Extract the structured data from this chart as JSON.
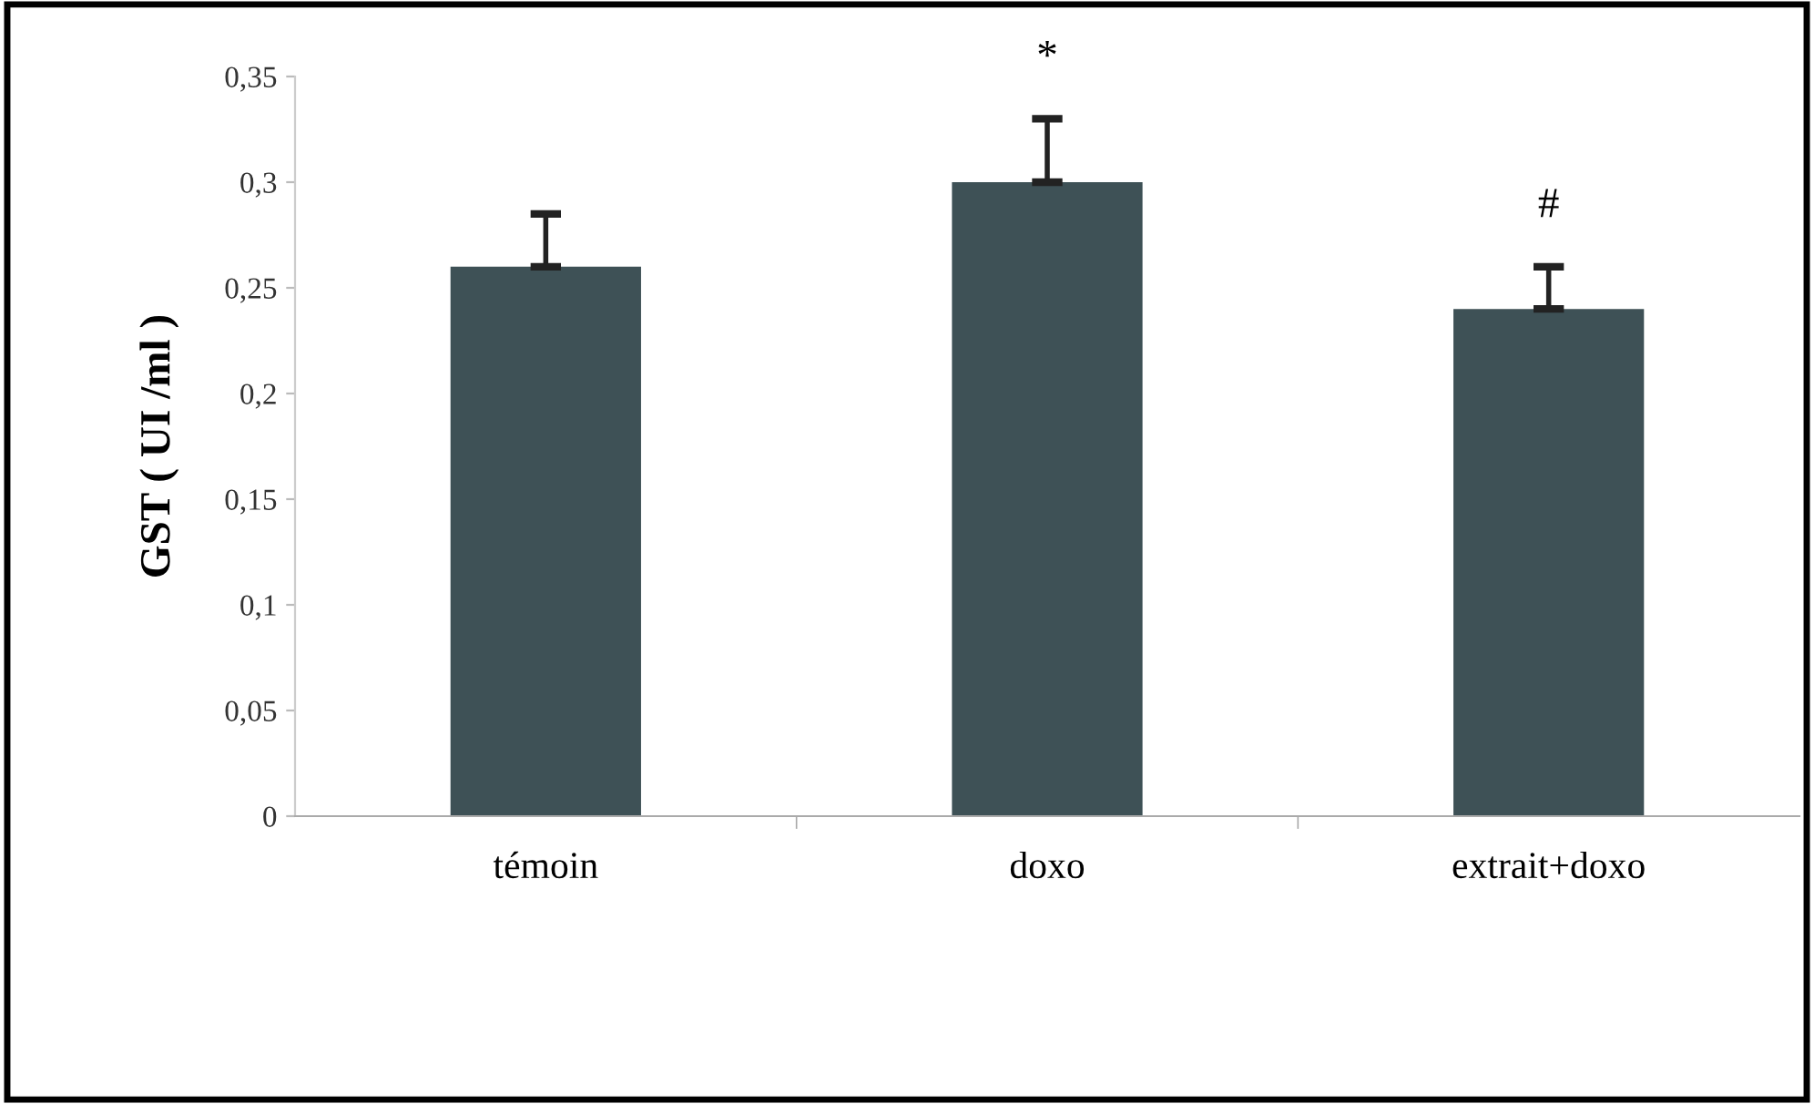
{
  "chart_data": {
    "type": "bar",
    "ylabel": "GST ( UI /ml )",
    "categories": [
      "témoin",
      "doxo",
      "extrait+doxo"
    ],
    "values": [
      0.26,
      0.3,
      0.24
    ],
    "color": "#3e5156",
    "errors": [
      [
        0.26,
        0.285
      ],
      [
        0.3,
        0.33
      ],
      [
        0.24,
        0.26
      ]
    ],
    "ylim": [
      0,
      0.35
    ],
    "yticks": [
      {
        "value": 0,
        "label": "0"
      },
      {
        "value": 0.05,
        "label": "0,05"
      },
      {
        "value": 0.1,
        "label": "0,1"
      },
      {
        "value": 0.15,
        "label": "0,15"
      },
      {
        "value": 0.2,
        "label": "0,2"
      },
      {
        "value": 0.25,
        "label": "0,25"
      },
      {
        "value": 0.3,
        "label": "0,3"
      },
      {
        "value": 0.35,
        "label": "0,35"
      }
    ],
    "annotations": [
      {
        "text": "*",
        "x": "doxo",
        "y": 0.33
      },
      {
        "text": "#",
        "x": "extrait+doxo",
        "y": 0.26
      }
    ],
    "grid": false,
    "legend": false
  }
}
